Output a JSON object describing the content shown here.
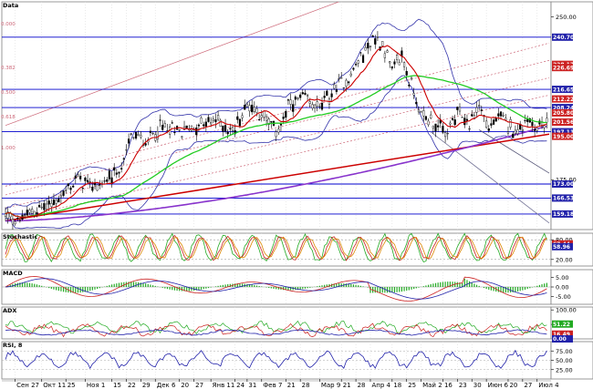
{
  "panels": {
    "price": {
      "label": "Data",
      "fib_labels": [
        "0.000",
        "0.382",
        "0.500",
        "0.618",
        "1.000"
      ]
    },
    "stochastic": {
      "label": "Stochastic"
    },
    "macd": {
      "label": "MACD"
    },
    "adx": {
      "label": "ADX"
    },
    "rsi": {
      "label": "RSI, 8"
    }
  },
  "colors": {
    "background": "#ffffff",
    "hline": "#0000cc",
    "ma_red": "#cc0000",
    "ma_green": "#22cc22",
    "ma_purple": "#8833cc",
    "bands": "#3333aa",
    "trend_pink": "#cc6677"
  },
  "price_axis": {
    "ticks": [
      {
        "value": "250.00",
        "v": 250
      },
      {
        "value": "175.00",
        "v": 175
      }
    ],
    "tags": [
      {
        "value": "240.70",
        "v": 240.7,
        "color": "#2222aa",
        "text_color": "#ffffff"
      },
      {
        "value": "228.17",
        "v": 228.17,
        "color": "#cc2222",
        "text_color": "#ffffff"
      },
      {
        "value": "226.69",
        "v": 226.69,
        "color": "#cc2222",
        "text_color": "#ffffff"
      },
      {
        "value": "216.65",
        "v": 216.65,
        "color": "#2222aa",
        "text_color": "#ffffff"
      },
      {
        "value": "212.22",
        "v": 212.22,
        "color": "#cc2222",
        "text_color": "#ffffff"
      },
      {
        "value": "208.24",
        "v": 208.24,
        "color": "#2222aa",
        "text_color": "#ffffff"
      },
      {
        "value": "205.80",
        "v": 205.8,
        "color": "#cc2222",
        "text_color": "#ffffff"
      },
      {
        "value": "201.56",
        "v": 201.56,
        "color": "#cc2222",
        "text_color": "#ffffff"
      },
      {
        "value": "197.11",
        "v": 197.11,
        "color": "#2222aa",
        "text_color": "#ffffff"
      },
      {
        "value": "195.00",
        "v": 195.0,
        "color": "#cc2222",
        "text_color": "#ffffff"
      },
      {
        "value": "173.00",
        "v": 173.0,
        "color": "#2222aa",
        "text_color": "#ffffff"
      },
      {
        "value": "166.53",
        "v": 166.53,
        "color": "#2222aa",
        "text_color": "#ffffff"
      },
      {
        "value": "159.18",
        "v": 159.18,
        "color": "#2222aa",
        "text_color": "#ffffff"
      }
    ]
  },
  "stoch_axis": {
    "ticks": [
      {
        "value": "80.00",
        "v": 80
      },
      {
        "value": "20.00",
        "v": 20
      }
    ],
    "tags": [
      {
        "value": "67.44",
        "v": 67.44,
        "color": "#cc2222",
        "text_color": "#ffffff"
      },
      {
        "value": "58.96",
        "v": 58.96,
        "color": "#2222aa",
        "text_color": "#ffffff"
      }
    ]
  },
  "macd_axis": {
    "ticks": [
      {
        "value": "5.00",
        "v": 5
      },
      {
        "value": "0.00",
        "v": 0
      },
      {
        "value": "-5.00",
        "v": -5
      }
    ]
  },
  "adx_axis": {
    "ticks": [
      {
        "value": "100.00",
        "v": 100
      },
      {
        "value": "50.00",
        "v": 50
      }
    ],
    "tags": [
      {
        "value": "51.22",
        "v": 51.22,
        "color": "#22aa22",
        "text_color": "#ffffff"
      },
      {
        "value": "16.49",
        "v": 16.49,
        "color": "#cc2222",
        "text_color": "#ffffff"
      },
      {
        "value": "0.00",
        "v": 0,
        "color": "#2222aa",
        "text_color": "#ffffff"
      }
    ]
  },
  "rsi_axis": {
    "ticks": [
      {
        "value": "75.00",
        "v": 75
      },
      {
        "value": "50.00",
        "v": 50
      },
      {
        "value": "25.00",
        "v": 25
      }
    ]
  },
  "time_axis": {
    "labels": [
      {
        "text": "Сен 27",
        "i": 4
      },
      {
        "text": "Окт 11",
        "i": 15
      },
      {
        "text": "25",
        "i": 25
      },
      {
        "text": "Ноя 1",
        "i": 33
      },
      {
        "text": "15",
        "i": 44
      },
      {
        "text": "22",
        "i": 50
      },
      {
        "text": "29",
        "i": 56
      },
      {
        "text": "Дек 6",
        "i": 62
      },
      {
        "text": "20",
        "i": 72
      },
      {
        "text": "27",
        "i": 78
      },
      {
        "text": "Янв 11",
        "i": 85
      },
      {
        "text": "24",
        "i": 95
      },
      {
        "text": "31",
        "i": 100
      },
      {
        "text": "Фев 7",
        "i": 106
      },
      {
        "text": "21",
        "i": 116
      },
      {
        "text": "28",
        "i": 122
      },
      {
        "text": "Мар 9",
        "i": 130
      },
      {
        "text": "21",
        "i": 139
      },
      {
        "text": "28",
        "i": 145
      },
      {
        "text": "Апр 4",
        "i": 151
      },
      {
        "text": "18",
        "i": 160
      },
      {
        "text": "25",
        "i": 166
      },
      {
        "text": "Май 2",
        "i": 172
      },
      {
        "text": "16",
        "i": 181
      },
      {
        "text": "23",
        "i": 187
      },
      {
        "text": "30",
        "i": 193
      },
      {
        "text": "Июн 6",
        "i": 199
      },
      {
        "text": "20",
        "i": 208
      },
      {
        "text": "27",
        "i": 214
      },
      {
        "text": "Июл 4",
        "i": 220
      }
    ]
  }
}
